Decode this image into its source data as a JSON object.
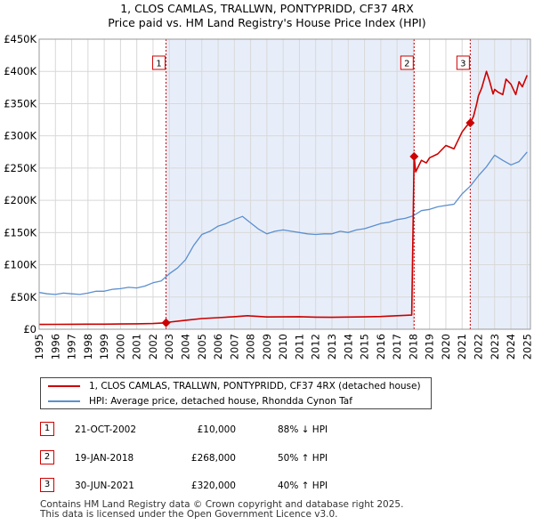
{
  "title": {
    "line1": "1, CLOS CAMLAS, TRALLWN, PONTYPRIDD, CF37 4RX",
    "line2": "Price paid vs. HM Land Registry's House Price Index (HPI)"
  },
  "colors": {
    "property": "#cc0000",
    "hpi": "#5b8fd0",
    "shade": "#e8eef9",
    "grid": "#d8d8d8"
  },
  "chart_data": {
    "type": "line",
    "title": "Price paid vs. HM Land Registry's House Price Index (HPI)",
    "xlabel": "",
    "ylabel": "",
    "xlim": [
      1995,
      2025.2
    ],
    "ylim": [
      0,
      450000
    ],
    "x_ticks": [
      1995,
      1996,
      1997,
      1998,
      1999,
      2000,
      2001,
      2002,
      2003,
      2004,
      2005,
      2006,
      2007,
      2008,
      2009,
      2010,
      2011,
      2012,
      2013,
      2014,
      2015,
      2016,
      2017,
      2018,
      2019,
      2020,
      2021,
      2022,
      2023,
      2024,
      2025
    ],
    "y_ticks": [
      {
        "value": 0,
        "label": "£0"
      },
      {
        "value": 50000,
        "label": "£50K"
      },
      {
        "value": 100000,
        "label": "£100K"
      },
      {
        "value": 150000,
        "label": "£150K"
      },
      {
        "value": 200000,
        "label": "£200K"
      },
      {
        "value": 250000,
        "label": "£250K"
      },
      {
        "value": 300000,
        "label": "£300K"
      },
      {
        "value": 350000,
        "label": "£350K"
      },
      {
        "value": 400000,
        "label": "£400K"
      },
      {
        "value": 450000,
        "label": "£450K"
      }
    ],
    "shaded_periods": [
      [
        2002.8,
        2018.05
      ],
      [
        2021.5,
        2025.2
      ]
    ],
    "series": [
      {
        "name": "1, CLOS CAMLAS, TRALLWN, PONTYPRIDD, CF37 4RX (detached house)",
        "color": "#cc0000",
        "x": [
          1995,
          1996,
          1997,
          1998,
          1999,
          2000,
          2001,
          2002,
          2002.8,
          2003,
          2004,
          2005,
          2006,
          2007,
          2007.8,
          2008,
          2009,
          2010,
          2011,
          2012,
          2013,
          2014,
          2015,
          2016,
          2017,
          2017.9,
          2018.05,
          2018.15,
          2018.3,
          2018.5,
          2018.8,
          2019,
          2019.5,
          2020,
          2020.5,
          2021,
          2021.3,
          2021.5,
          2021.7,
          2021.9,
          2022,
          2022.2,
          2022.5,
          2022.7,
          2022.9,
          2023,
          2023.2,
          2023.5,
          2023.7,
          2024,
          2024.3,
          2024.5,
          2024.7,
          2025
        ],
        "y": [
          7500,
          7600,
          7700,
          7800,
          7900,
          8100,
          8400,
          8900,
          10000,
          11000,
          14000,
          16500,
          18000,
          19500,
          21000,
          20500,
          19000,
          19200,
          19500,
          18800,
          18500,
          18900,
          19200,
          19800,
          21000,
          22000,
          268000,
          244000,
          252000,
          262000,
          258000,
          266000,
          272000,
          285000,
          280000,
          306000,
          316000,
          320000,
          330000,
          350000,
          362000,
          374000,
          400000,
          384000,
          365000,
          372000,
          368000,
          364000,
          388000,
          380000,
          364000,
          384000,
          376000,
          394000
        ],
        "markers": [
          [
            2002.8,
            10000
          ],
          [
            2018.05,
            268000
          ],
          [
            2021.5,
            320000
          ]
        ]
      },
      {
        "name": "HPI: Average price, detached house, Rhondda Cynon Taf",
        "color": "#5b8fd0",
        "x": [
          1995,
          1995.5,
          1996,
          1996.5,
          1997,
          1997.5,
          1998,
          1998.5,
          1999,
          1999.5,
          2000,
          2000.5,
          2001,
          2001.5,
          2002,
          2002.5,
          2003,
          2003.5,
          2004,
          2004.5,
          2005,
          2005.5,
          2006,
          2006.5,
          2007,
          2007.5,
          2008,
          2008.5,
          2009,
          2009.5,
          2010,
          2010.5,
          2011,
          2011.5,
          2012,
          2012.5,
          2013,
          2013.5,
          2014,
          2014.5,
          2015,
          2015.5,
          2016,
          2016.5,
          2017,
          2017.5,
          2018,
          2018.5,
          2019,
          2019.5,
          2020,
          2020.5,
          2021,
          2021.5,
          2022,
          2022.5,
          2023,
          2023.5,
          2024,
          2024.5,
          2025
        ],
        "y": [
          57000,
          55000,
          54000,
          56000,
          55000,
          54000,
          56000,
          59000,
          59000,
          62000,
          63000,
          65000,
          64000,
          67000,
          72000,
          75000,
          86000,
          95000,
          108000,
          130000,
          147000,
          152000,
          160000,
          164000,
          170000,
          175000,
          165000,
          155000,
          148000,
          152000,
          154000,
          152000,
          150000,
          148000,
          147000,
          148000,
          148000,
          152000,
          150000,
          154000,
          156000,
          160000,
          164000,
          166000,
          170000,
          172000,
          176000,
          184000,
          186000,
          190000,
          192000,
          194000,
          210000,
          222000,
          238000,
          252000,
          270000,
          262000,
          255000,
          260000,
          275000
        ]
      }
    ],
    "annotations": [
      {
        "label": "1",
        "x": 2002.8
      },
      {
        "label": "2",
        "x": 2018.05
      },
      {
        "label": "3",
        "x": 2021.5
      }
    ]
  },
  "legend": {
    "property": "1, CLOS CAMLAS, TRALLWN, PONTYPRIDD, CF37 4RX (detached house)",
    "hpi": "HPI: Average price, detached house, Rhondda Cynon Taf"
  },
  "transactions": [
    {
      "num": "1",
      "date": "21-OCT-2002",
      "price": "£10,000",
      "hpi": "88% ↓ HPI"
    },
    {
      "num": "2",
      "date": "19-JAN-2018",
      "price": "£268,000",
      "hpi": "50% ↑ HPI"
    },
    {
      "num": "3",
      "date": "30-JUN-2021",
      "price": "£320,000",
      "hpi": "40% ↑ HPI"
    }
  ],
  "footer": {
    "line1": "Contains HM Land Registry data © Crown copyright and database right 2025.",
    "line2": "This data is licensed under the Open Government Licence v3.0."
  }
}
